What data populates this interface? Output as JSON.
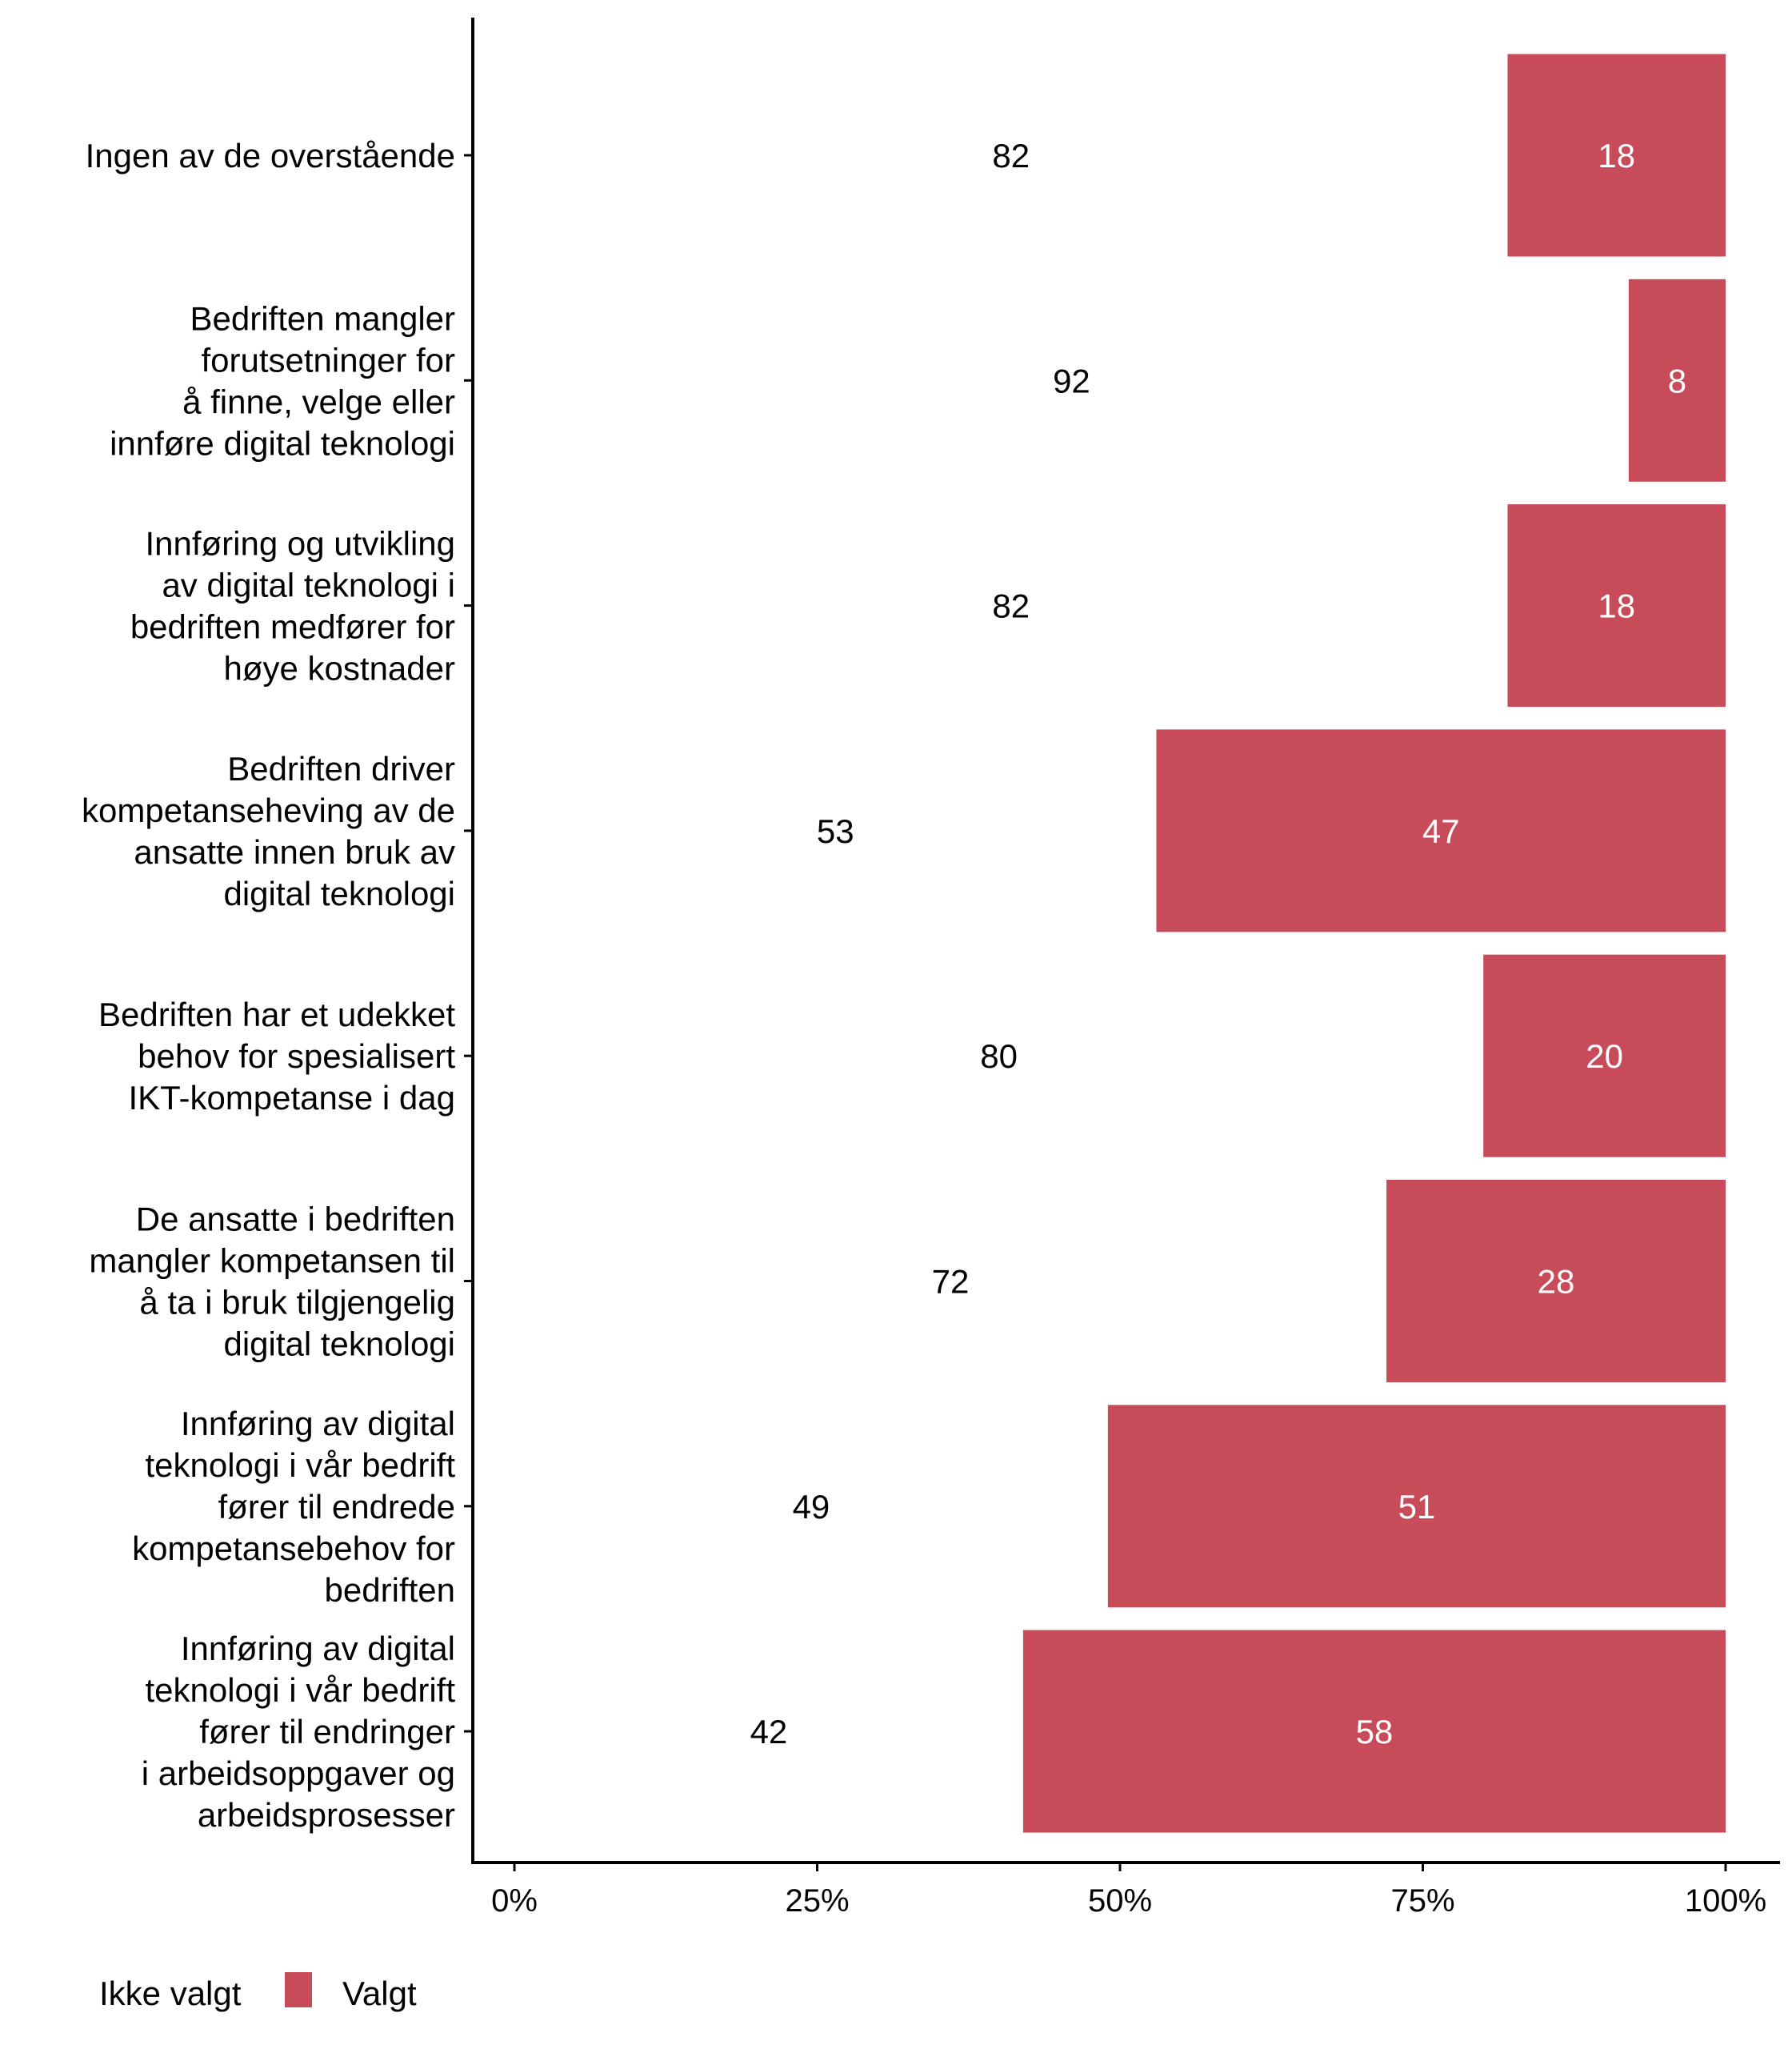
{
  "chart_data": {
    "type": "bar",
    "orientation": "horizontal",
    "stacked": true,
    "percent": true,
    "categories": [
      [
        "Ingen av de overstående"
      ],
      [
        "Bedriften mangler",
        "forutsetninger for",
        "å finne, velge eller",
        "innføre digital teknologi"
      ],
      [
        "Innføring og utvikling",
        "av digital teknologi i",
        "bedriften medfører for",
        "høye kostnader"
      ],
      [
        "Bedriften driver",
        "kompetanseheving av de",
        "ansatte innen bruk av",
        "digital teknologi"
      ],
      [
        "Bedriften har et udekket",
        "behov for spesialisert",
        "IKT-kompetanse i dag"
      ],
      [
        "De ansatte i bedriften",
        "mangler kompetansen til",
        "å ta i bruk tilgjengelig",
        "digital teknologi"
      ],
      [
        "Innføring av digital",
        "teknologi i vår bedrift",
        "fører til endrede",
        "kompetansebehov for",
        "bedriften"
      ],
      [
        "Innføring av digital",
        "teknologi i vår bedrift",
        "fører til endringer",
        "i arbeidsoppgaver og",
        "arbeidsprosesser"
      ]
    ],
    "series": [
      {
        "name": "Ikke valgt",
        "color": "#FFFFFF",
        "label_color": "#000000",
        "values": [
          82,
          92,
          82,
          53,
          80,
          72,
          49,
          42
        ]
      },
      {
        "name": "Valgt",
        "color": "#C84B5A",
        "label_color": "#FFFFFF",
        "values": [
          18,
          8,
          18,
          47,
          20,
          28,
          51,
          58
        ]
      }
    ],
    "xlim": [
      0,
      100
    ],
    "x_ticks": [
      "0%",
      "25%",
      "50%",
      "75%",
      "100%"
    ],
    "grid": false,
    "legend_position": "bottom-left"
  }
}
